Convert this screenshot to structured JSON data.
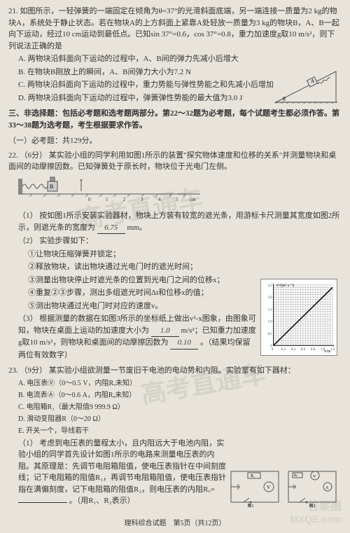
{
  "q21": {
    "num": "21.",
    "text": "如图所示，一轻弹簧的一端固定在倾角为θ=37°的光滑斜面底端，另一端连接一质量为2 kg的物块A，系统处于静止状态。若在物块A的上方斜面上紧靠A处轻放一质量为3 kg的物块B，A、B一起向下运动，经过10 cm运动到最低点。已知sin 37°=0.6，cos 37°=0.8，重力加速度g取10 m/s²，则下列说法正确的是",
    "opts": {
      "A": "A. 两物块沿斜面向下运动的过程中，A、B间的弹力先减小后增大",
      "B": "B. 在物块B刚放上的瞬间，A、B间弹力大小为7.2 N",
      "C": "C. 两物块沿斜面向下运动的过程中，重力势能与弹性势能之和先减小后增加",
      "D": "D. 两物块沿斜面向下运动的过程中，弹簧弹性势能的最大值为3.0 J"
    },
    "incline": {
      "angle_label": "θ",
      "box_label": "A",
      "colors": {
        "slope": "#666",
        "box": "#999",
        "spring": "#555"
      }
    }
  },
  "section3": {
    "title": "三、非选择题：包括必考题和选考题两部分。第22～32题为必考题，每个试题考生都必须作答。第33～38题为选考题，考生根据要求作答。",
    "sub": "（一）必考题：共129分。"
  },
  "q22": {
    "num": "22.",
    "pts": "（6分）",
    "text": "某实验小组的同学利用如图1所示的装置\"探究物体速度和位移的关系\"并测量物块和桌面间的动摩擦因数。已知弹簧处于原长时，物块位于光电门左侧。",
    "ruler_caption": "图1",
    "ruler_marks": [
      "0",
      "1",
      "2",
      "3",
      "4",
      "5",
      "cm"
    ],
    "spring_label": "B",
    "p1": {
      "label": "（1）",
      "text": "按如图1所示安装实验器材，物块上方装有较宽的遮光条，用游标卡尺测量其宽度如图2所示，则遮光条的宽度为",
      "ans": "6.75",
      "unit": "mm。"
    },
    "p2": {
      "label": "（2）",
      "text": "实验步骤如下：",
      "s1": "①让物块压缩弹簧并锁定；",
      "s2": "②释放物块，读出物块通过光电门时的遮光时间；",
      "s3": "③测量出物块停止时遮光条的位置到光电门之间的位移x；",
      "s4": "④重复②③步骤，测出多组遮光时间Δt和位移x的值；",
      "s5": "⑤测出物块通过光电门时对应的速度v。"
    },
    "p3": {
      "label": "（3）",
      "text1": "根据测量的数据在如图3所示的坐标纸上做出v²-x图象，由图象可知，物块在桌面上运动的加速度大小为",
      "ans1": "1.0",
      "unit1": "m/s²；已知重力加速度g取10 m/s²，则物块和桌面间的动摩擦因数为",
      "ans2": "0.10",
      "tail": "。（结果均保留两位有效数字）"
    },
    "graph": {
      "ylabel": "v²/(m²·s⁻²)",
      "xlabel": "x/m",
      "xticks": [
        "0",
        "0.2",
        "0.4",
        "0.6",
        "0.8",
        "1.0",
        "1.2"
      ],
      "yticks": [
        "0",
        "0.5",
        "1.0",
        "1.5",
        "2.0",
        "2.5"
      ],
      "line": {
        "x1": 0,
        "y1": 0.0,
        "x2": 1.2,
        "y2": 2.4
      },
      "bg": "#ffffff",
      "grid_color": "#888888",
      "line_color": "#000000"
    }
  },
  "q23": {
    "num": "23.",
    "pts": "（9分）",
    "text": "某实验小组欲测量一节废旧干电池的电动势和内阻。实验室有如下器材：",
    "items": {
      "A": "A. 电压表Ⓥ（0～0.5 V，内阻Rᵥ未知）",
      "B": "B. 电流表Ⓐ（0～0.6 A，内阻Rₐ未知）",
      "C": "C. 电阻箱R₁（最大阻值9 999.9 Ω）",
      "D": "D. 滑动变阻器R（0～20 Ω）",
      "E": "E. 开关一个，导线若干"
    },
    "p1": {
      "label": "（1）",
      "text": "考虑到电压表的量程太小，且内阻远大于电池内阻，实验小组的同学首先设计如图1所示的电路来测量电压表的内阻。其原理是：先调节电阻箱阻值，使电压表指针在中间刻度线；记下电阻箱的阻值R₁，再调节电阻箱阻值，使电压表指针指在满偏刻度，记下电阻箱的阻值R₂，则电压表的内阻Rᵥ=",
      "tail": "。（用R₁、R₂表示）"
    },
    "circ1_caption": "图1",
    "circ2_caption": "图2",
    "symbols": {
      "V": "V",
      "A": "A",
      "R1": "R₁",
      "Rp": "Rₚ"
    }
  },
  "footer": "理科综合试题　第5页（共12页）",
  "watermarks": {
    "w1": "高考直通车",
    "w2": "高考直通车",
    "w3": "答案圈",
    "w4": "MXQE.com"
  }
}
